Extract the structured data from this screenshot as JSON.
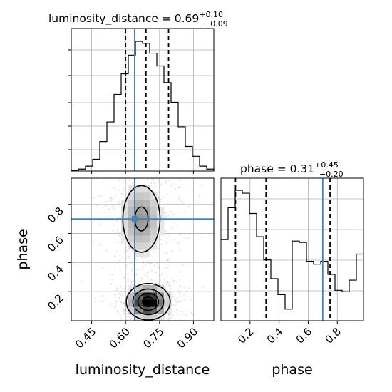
{
  "chart_data": [
    {
      "type": "histogram",
      "panel": "luminosity_distance-marginal",
      "title": {
        "prefix": "luminosity_distance = 0.69",
        "sup": "+0.10",
        "sub": "−0.09"
      },
      "xlim": [
        0.36,
        0.99
      ],
      "bins_start": 0.36,
      "bin_width": 0.0315,
      "counts": [
        0.6,
        2,
        5,
        12,
        30,
        50,
        78,
        99,
        118,
        132,
        130,
        120,
        107,
        90,
        70,
        45,
        25,
        15,
        5,
        2
      ],
      "quantiles": [
        0.6,
        0.69,
        0.79
      ],
      "truth": 0.64,
      "grid": true
    },
    {
      "type": "histogram",
      "panel": "phase-marginal",
      "title": {
        "prefix": "phase = 0.31",
        "sup": "+0.45",
        "sub": "−0.20"
      },
      "xlim": [
        0.0,
        0.98
      ],
      "bins_start": 0.0,
      "bin_width": 0.049,
      "counts": [
        56,
        78,
        90,
        88,
        74,
        58,
        42,
        29,
        18,
        8,
        55,
        54,
        41,
        39,
        41,
        32,
        21,
        20,
        28,
        46
      ],
      "quantiles": [
        0.1,
        0.31,
        0.75
      ],
      "truth": 0.7,
      "xticks": [
        "0.2",
        "0.4",
        "0.6",
        "0.8"
      ],
      "xlabel": "phase",
      "grid": true
    },
    {
      "type": "heatmap",
      "panel": "luminosity_distance-vs-phase",
      "xlim": [
        0.36,
        0.99
      ],
      "ylim": [
        0.0,
        0.98
      ],
      "truth": {
        "x": 0.64,
        "y": 0.7
      },
      "xticks": [
        "0.45",
        "0.60",
        "0.75",
        "0.90"
      ],
      "yticks": [
        "0.2",
        "0.4",
        "0.6",
        "0.8"
      ],
      "xlabel": "luminosity_distance",
      "ylabel": "phase",
      "grid": true,
      "density_modes": [
        {
          "x": 0.7,
          "y": 0.13,
          "sx": 0.045,
          "sy": 0.058,
          "weight": 1.0
        },
        {
          "x": 0.67,
          "y": 0.7,
          "sx": 0.05,
          "sy": 0.14,
          "weight": 0.38
        }
      ]
    }
  ],
  "colors": {
    "truth": "#4682b4",
    "hist": "#000000",
    "grid": "#b0b0b0",
    "contour": "#000000",
    "scatter": "#555555"
  }
}
